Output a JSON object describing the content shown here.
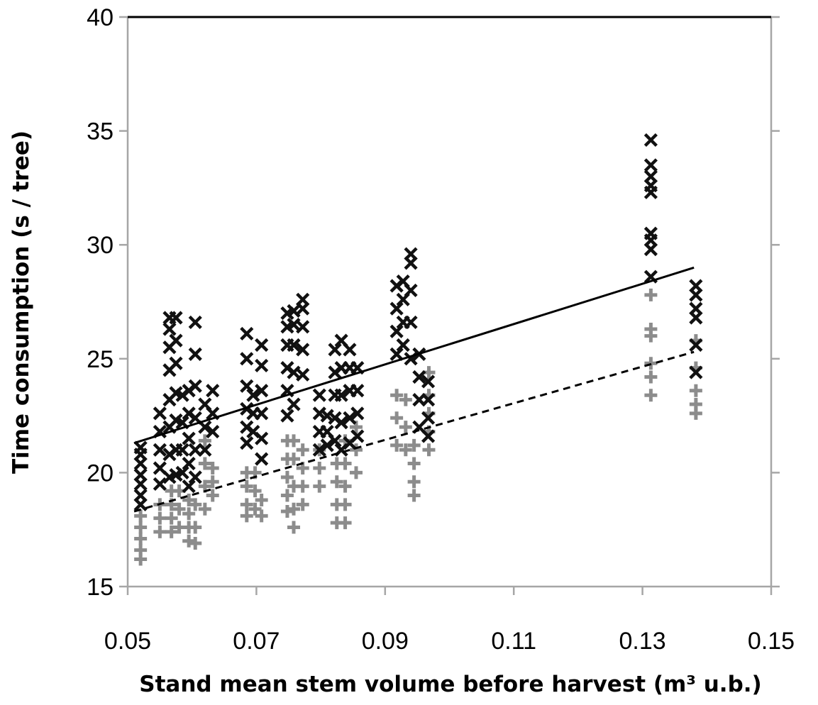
{
  "chart_data": {
    "type": "scatter",
    "title": "",
    "xlabel": "Stand mean stem volume before harvest (m³ u.b.)",
    "ylabel": "Time consumption (s / tree)",
    "xlim": [
      0.05,
      0.15
    ],
    "ylim": [
      15,
      40
    ],
    "x_ticks": [
      "0.05",
      "0.07",
      "0.09",
      "0.11",
      "0.13",
      "0.15"
    ],
    "y_ticks": [
      "15",
      "20",
      "25",
      "30",
      "35",
      "40"
    ],
    "grid": false,
    "legend": "none",
    "colors": {
      "cross_series": "#111111",
      "plus_series": "#8c8c8c",
      "axes": "#a6a6a6"
    },
    "series": [
      {
        "marker": "x",
        "color": "#111111",
        "groups": [
          {
            "x": 0.052,
            "y": [
              18.6,
              19.0,
              19.5,
              19.9,
              20.4,
              20.8,
              21.1
            ]
          },
          {
            "x": 0.055,
            "y": [
              19.5,
              20.2,
              21.0,
              21.8,
              22.6
            ]
          },
          {
            "x": 0.0565,
            "y": [
              19.8,
              20.8,
              22.0,
              23.2,
              24.5,
              25.5,
              26.3,
              26.8
            ]
          },
          {
            "x": 0.0575,
            "y": [
              19.9,
              21.0,
              22.3,
              23.5,
              24.8,
              25.8,
              26.8
            ]
          },
          {
            "x": 0.0585,
            "y": [
              20.0,
              21.0,
              22.2,
              23.4
            ]
          },
          {
            "x": 0.0595,
            "y": [
              19.4,
              20.4,
              21.5,
              22.6,
              23.6
            ]
          },
          {
            "x": 0.0605,
            "y": [
              19.8,
              21.0,
              22.4,
              23.8,
              25.2,
              26.6
            ]
          },
          {
            "x": 0.062,
            "y": [
              21.0,
              22.0,
              23.0
            ]
          },
          {
            "x": 0.0632,
            "y": [
              21.8,
              22.6,
              23.6
            ]
          },
          {
            "x": 0.0685,
            "y": [
              21.3,
              22.0,
              22.8,
              23.8,
              25.0,
              26.1
            ]
          },
          {
            "x": 0.0695,
            "y": [
              21.8,
              22.6,
              23.4
            ]
          },
          {
            "x": 0.0708,
            "y": [
              20.6,
              21.5,
              22.6,
              23.6,
              24.7,
              25.6
            ]
          },
          {
            "x": 0.0748,
            "y": [
              22.5,
              23.6,
              24.6,
              25.6,
              26.4,
              27.0
            ]
          },
          {
            "x": 0.0758,
            "y": [
              23.0,
              24.4,
              25.6,
              26.5,
              27.1
            ]
          },
          {
            "x": 0.0772,
            "y": [
              24.3,
              25.4,
              26.4,
              27.2,
              27.6
            ]
          },
          {
            "x": 0.0798,
            "y": [
              21.0,
              21.8,
              22.6,
              23.4
            ]
          },
          {
            "x": 0.081,
            "y": [
              21.2,
              21.8,
              22.5
            ]
          },
          {
            "x": 0.0822,
            "y": [
              21.4,
              22.4,
              23.4,
              24.4,
              25.4
            ]
          },
          {
            "x": 0.0832,
            "y": [
              21.0,
              22.2,
              23.4,
              24.6,
              25.8
            ]
          },
          {
            "x": 0.0845,
            "y": [
              21.3,
              22.4,
              23.6,
              24.6,
              25.4
            ]
          },
          {
            "x": 0.0857,
            "y": [
              21.6,
              22.6,
              23.6,
              24.6
            ]
          },
          {
            "x": 0.0918,
            "y": [
              25.2,
              26.2,
              27.2,
              28.2
            ]
          },
          {
            "x": 0.0928,
            "y": [
              25.6,
              26.6,
              27.6,
              28.4
            ]
          },
          {
            "x": 0.094,
            "y": [
              25.0,
              26.6,
              28.0,
              29.2,
              29.6
            ]
          },
          {
            "x": 0.0953,
            "y": [
              22.0,
              23.2,
              24.2,
              25.2
            ]
          },
          {
            "x": 0.0967,
            "y": [
              21.6,
              22.4,
              23.2,
              24.0
            ]
          },
          {
            "x": 0.1313,
            "y": [
              28.6,
              29.8,
              30.2,
              30.5,
              32.3,
              32.6,
              33.0,
              33.5,
              34.6
            ]
          },
          {
            "x": 0.1383,
            "y": [
              24.4,
              25.6,
              26.8,
              27.2,
              27.8,
              28.2
            ]
          }
        ]
      },
      {
        "marker": "+",
        "color": "#8c8c8c",
        "groups": [
          {
            "x": 0.052,
            "y": [
              16.2,
              16.6,
              17.1,
              17.6,
              18.1
            ]
          },
          {
            "x": 0.055,
            "y": [
              17.4,
              18.0,
              18.6
            ]
          },
          {
            "x": 0.0568,
            "y": [
              17.4,
              18.0,
              18.6,
              19.2
            ]
          },
          {
            "x": 0.058,
            "y": [
              17.6,
              18.4,
              19.2
            ]
          },
          {
            "x": 0.0595,
            "y": [
              17.0,
              17.6,
              18.2,
              18.8
            ]
          },
          {
            "x": 0.0605,
            "y": [
              16.9,
              17.6,
              18.6
            ]
          },
          {
            "x": 0.062,
            "y": [
              18.4,
              19.4,
              20.4,
              21.4
            ]
          },
          {
            "x": 0.0632,
            "y": [
              19.0,
              19.6,
              20.2
            ]
          },
          {
            "x": 0.0685,
            "y": [
              18.1,
              18.6,
              19.4,
              20.0
            ]
          },
          {
            "x": 0.0698,
            "y": [
              18.4,
              19.2,
              20.0
            ]
          },
          {
            "x": 0.0708,
            "y": [
              18.1,
              18.8
            ]
          },
          {
            "x": 0.0748,
            "y": [
              18.3,
              19.0,
              19.8,
              20.6,
              21.4
            ]
          },
          {
            "x": 0.0758,
            "y": [
              17.6,
              18.4,
              19.4,
              20.6,
              21.4
            ]
          },
          {
            "x": 0.0772,
            "y": [
              18.6,
              19.4,
              20.2,
              21.0
            ]
          },
          {
            "x": 0.0798,
            "y": [
              19.4,
              20.2,
              21.0
            ]
          },
          {
            "x": 0.0825,
            "y": [
              17.8,
              18.6,
              19.6,
              20.4
            ]
          },
          {
            "x": 0.0838,
            "y": [
              17.8,
              18.6,
              19.4,
              20.4,
              21.4
            ]
          },
          {
            "x": 0.0855,
            "y": [
              20.0,
              21.0,
              22.0
            ]
          },
          {
            "x": 0.0918,
            "y": [
              21.2,
              22.4,
              23.4
            ]
          },
          {
            "x": 0.0932,
            "y": [
              21.0,
              22.0,
              23.2
            ]
          },
          {
            "x": 0.0945,
            "y": [
              19.0,
              19.6,
              20.4,
              21.2
            ]
          },
          {
            "x": 0.0968,
            "y": [
              21.0,
              21.8,
              22.6,
              23.4,
              24.4
            ]
          },
          {
            "x": 0.1313,
            "y": [
              23.4,
              24.2,
              24.8,
              26.0,
              26.3,
              27.8
            ]
          },
          {
            "x": 0.1383,
            "y": [
              22.6,
              23.0,
              23.6,
              24.6,
              25.8
            ]
          }
        ]
      }
    ],
    "trend_lines": [
      {
        "style": "solid",
        "color": "#000000",
        "x": [
          0.051,
          0.138
        ],
        "y": [
          21.3,
          29.0
        ]
      },
      {
        "style": "dashed",
        "color": "#000000",
        "x": [
          0.051,
          0.138
        ],
        "y": [
          18.3,
          25.3
        ]
      }
    ]
  }
}
